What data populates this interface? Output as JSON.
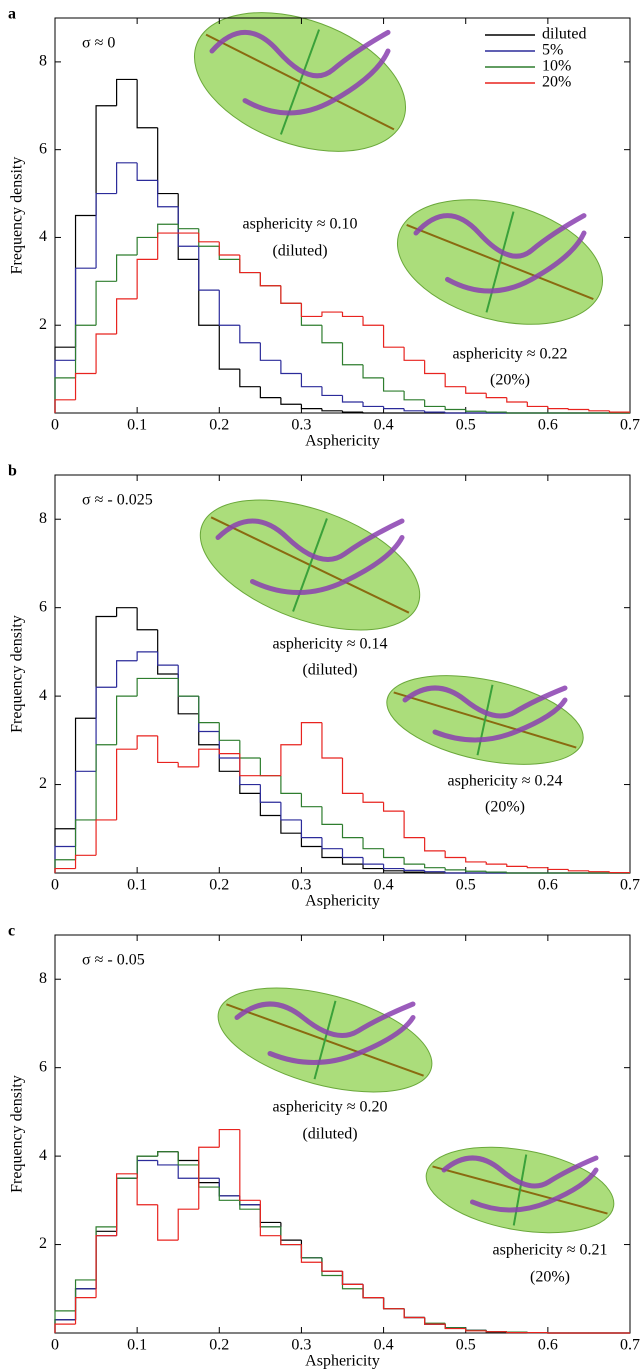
{
  "chart_data": [
    {
      "type": "histogram",
      "label": "a",
      "title": "σ ≈ 0",
      "xlabel": "Asphericity",
      "ylabel": "Frequency density",
      "bins": [
        0,
        0.025,
        0.05,
        0.075,
        0.1,
        0.125,
        0.15,
        0.175,
        0.2,
        0.225,
        0.25,
        0.275,
        0.3,
        0.325,
        0.35,
        0.375,
        0.4,
        0.425,
        0.45,
        0.475,
        0.5,
        0.525,
        0.55,
        0.575,
        0.6,
        0.625,
        0.65,
        0.675,
        0.7
      ],
      "xlim": [
        0,
        0.7
      ],
      "xticks": [
        0,
        0.1,
        0.2,
        0.3,
        0.4,
        0.5,
        0.6,
        0.7
      ],
      "ylim": [
        0,
        9
      ],
      "yticks": [
        2,
        4,
        6,
        8
      ],
      "legend": "upper right",
      "annotations": [
        "asphericity ≈ 0.10",
        "(diluted)",
        "asphericity ≈ 0.22",
        "(20%)"
      ],
      "series": [
        {
          "name": "diluted",
          "color": "#000000",
          "values": [
            1.5,
            4.5,
            7.0,
            7.6,
            6.5,
            5.0,
            3.5,
            2.0,
            1.0,
            0.6,
            0.35,
            0.2,
            0.1,
            0.05,
            0.02,
            0,
            0,
            0,
            0,
            0,
            0,
            0,
            0,
            0,
            0,
            0,
            0,
            0
          ]
        },
        {
          "name": "5%",
          "color": "#2b2b9a",
          "values": [
            1.2,
            3.3,
            5.0,
            5.7,
            5.3,
            4.7,
            3.8,
            2.8,
            2.0,
            1.6,
            1.2,
            0.9,
            0.6,
            0.4,
            0.25,
            0.15,
            0.1,
            0.05,
            0.02,
            0,
            0,
            0,
            0,
            0,
            0,
            0,
            0,
            0
          ]
        },
        {
          "name": "10%",
          "color": "#2e7d2e",
          "values": [
            0.8,
            2.0,
            3.0,
            3.6,
            4.0,
            4.3,
            4.2,
            3.8,
            3.5,
            3.2,
            2.9,
            2.5,
            2.0,
            1.6,
            1.1,
            0.8,
            0.5,
            0.3,
            0.15,
            0.08,
            0.04,
            0.02,
            0,
            0,
            0,
            0,
            0,
            0
          ]
        },
        {
          "name": "20%",
          "color": "#e8231f",
          "values": [
            0.3,
            0.9,
            1.8,
            2.6,
            3.5,
            4.1,
            4.1,
            3.9,
            3.6,
            3.2,
            2.9,
            2.5,
            2.2,
            2.3,
            2.2,
            2.0,
            1.5,
            1.2,
            0.9,
            0.6,
            0.45,
            0.35,
            0.25,
            0.15,
            0.1,
            0.08,
            0.05,
            0.02
          ]
        }
      ]
    },
    {
      "type": "histogram",
      "label": "b",
      "title": "σ ≈ - 0.025",
      "xlabel": "Asphericity",
      "ylabel": "Frequency density",
      "bins": [
        0,
        0.025,
        0.05,
        0.075,
        0.1,
        0.125,
        0.15,
        0.175,
        0.2,
        0.225,
        0.25,
        0.275,
        0.3,
        0.325,
        0.35,
        0.375,
        0.4,
        0.425,
        0.45,
        0.475,
        0.5,
        0.525,
        0.55,
        0.575,
        0.6,
        0.625,
        0.65,
        0.675,
        0.7
      ],
      "xlim": [
        0,
        0.7
      ],
      "xticks": [
        0,
        0.1,
        0.2,
        0.3,
        0.4,
        0.5,
        0.6,
        0.7
      ],
      "ylim": [
        0,
        9
      ],
      "yticks": [
        2,
        4,
        6,
        8
      ],
      "annotations": [
        "asphericity ≈ 0.14",
        "(diluted)",
        "asphericity ≈ 0.24",
        "(20%)"
      ],
      "series": [
        {
          "color": "#000000",
          "values": [
            1.0,
            3.5,
            5.8,
            6.0,
            5.5,
            4.5,
            3.6,
            2.9,
            2.3,
            1.8,
            1.3,
            0.9,
            0.6,
            0.35,
            0.2,
            0.1,
            0.05,
            0.02,
            0,
            0,
            0,
            0,
            0,
            0,
            0,
            0,
            0,
            0
          ]
        },
        {
          "color": "#2b2b9a",
          "values": [
            0.6,
            2.3,
            4.2,
            4.8,
            5.0,
            4.7,
            4.0,
            3.2,
            2.6,
            2.0,
            1.6,
            1.2,
            0.8,
            0.55,
            0.35,
            0.2,
            0.1,
            0.06,
            0.03,
            0,
            0,
            0,
            0,
            0,
            0,
            0,
            0,
            0
          ]
        },
        {
          "color": "#2e7d2e",
          "values": [
            0.3,
            1.2,
            2.9,
            4.0,
            4.4,
            4.4,
            4.0,
            3.4,
            3.0,
            2.6,
            2.2,
            1.8,
            1.5,
            1.1,
            0.8,
            0.55,
            0.35,
            0.2,
            0.12,
            0.07,
            0.04,
            0.02,
            0,
            0,
            0,
            0,
            0,
            0
          ]
        },
        {
          "color": "#e8231f",
          "values": [
            0.1,
            0.4,
            1.2,
            2.8,
            3.1,
            2.5,
            2.4,
            2.8,
            2.7,
            2.2,
            2.2,
            2.9,
            3.4,
            2.6,
            1.8,
            1.6,
            1.4,
            0.8,
            0.5,
            0.35,
            0.25,
            0.2,
            0.15,
            0.12,
            0.08,
            0.05,
            0.03,
            0.01
          ]
        }
      ]
    },
    {
      "type": "histogram",
      "label": "c",
      "title": "σ ≈ - 0.05",
      "xlabel": "Asphericity",
      "ylabel": "Frequency density",
      "bins": [
        0,
        0.025,
        0.05,
        0.075,
        0.1,
        0.125,
        0.15,
        0.175,
        0.2,
        0.225,
        0.25,
        0.275,
        0.3,
        0.325,
        0.35,
        0.375,
        0.4,
        0.425,
        0.45,
        0.475,
        0.5,
        0.525,
        0.55,
        0.575,
        0.6,
        0.625,
        0.65,
        0.675,
        0.7
      ],
      "xlim": [
        0,
        0.7
      ],
      "xticks": [
        0,
        0.1,
        0.2,
        0.3,
        0.4,
        0.5,
        0.6,
        0.7
      ],
      "ylim": [
        0,
        9
      ],
      "yticks": [
        2,
        4,
        6,
        8
      ],
      "annotations": [
        "asphericity ≈ 0.20",
        "(diluted)",
        "asphericity ≈ 0.21",
        "(20%)"
      ],
      "series": [
        {
          "color": "#000000",
          "values": [
            0.3,
            1.0,
            2.3,
            3.5,
            4.0,
            4.1,
            3.9,
            3.4,
            3.1,
            2.9,
            2.5,
            2.1,
            1.7,
            1.4,
            1.1,
            0.8,
            0.55,
            0.35,
            0.2,
            0.12,
            0.06,
            0.03,
            0.02,
            0.01,
            0,
            0,
            0,
            0
          ]
        },
        {
          "color": "#2b2b9a",
          "values": [
            0.3,
            1.0,
            2.2,
            3.5,
            3.9,
            3.8,
            3.5,
            3.5,
            3.1,
            2.9,
            2.4,
            2.0,
            1.7,
            1.4,
            1.1,
            0.8,
            0.55,
            0.35,
            0.2,
            0.12,
            0.06,
            0.03,
            0.02,
            0.01,
            0,
            0,
            0,
            0
          ]
        },
        {
          "color": "#2e7d2e",
          "values": [
            0.5,
            1.2,
            2.4,
            3.5,
            4.0,
            4.1,
            3.8,
            3.3,
            3.0,
            2.8,
            2.4,
            2.0,
            1.7,
            1.3,
            1.0,
            0.8,
            0.55,
            0.35,
            0.22,
            0.12,
            0.06,
            0.03,
            0.02,
            0.01,
            0,
            0,
            0,
            0
          ]
        },
        {
          "color": "#e8231f",
          "values": [
            0.2,
            0.8,
            2.2,
            3.6,
            2.9,
            2.1,
            2.8,
            4.2,
            4.6,
            3.0,
            2.2,
            2.0,
            1.6,
            1.4,
            1.1,
            0.8,
            0.55,
            0.35,
            0.2,
            0.1,
            0.05,
            0.03,
            0.01,
            0.01,
            0,
            0,
            0,
            0
          ]
        }
      ]
    }
  ]
}
